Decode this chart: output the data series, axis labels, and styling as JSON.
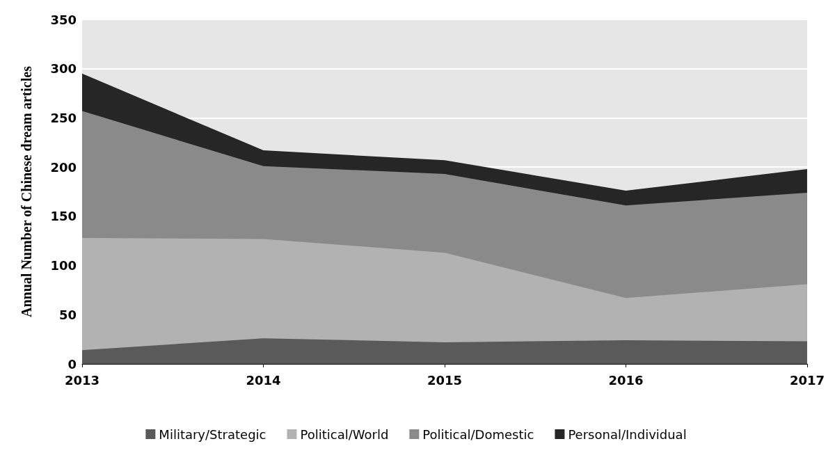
{
  "chart_data": {
    "type": "area",
    "stacked": true,
    "ylabel": "Annual Number of Chinese dream articles",
    "x": [
      2013,
      2014,
      2015,
      2016,
      2017
    ],
    "series": [
      {
        "name": "Military/Strategic",
        "color": "#5a5a5a",
        "values": [
          14,
          26,
          22,
          24,
          23
        ]
      },
      {
        "name": "Political/World",
        "color": "#b2b2b2",
        "values": [
          114,
          101,
          91,
          43,
          58
        ]
      },
      {
        "name": "Political/Domestic",
        "color": "#8a8a8a",
        "values": [
          129,
          74,
          80,
          94,
          93
        ]
      },
      {
        "name": "Personal/Individual",
        "color": "#262626",
        "values": [
          38,
          16,
          14,
          15,
          24
        ]
      }
    ],
    "xlim": [
      2013,
      2017
    ],
    "xticks": [
      2013,
      2014,
      2015,
      2016,
      2017
    ],
    "ylim": [
      0,
      350
    ],
    "yticks": [
      0,
      50,
      100,
      150,
      200,
      250,
      300,
      350
    ],
    "grid": "y",
    "legend": "bottom"
  }
}
